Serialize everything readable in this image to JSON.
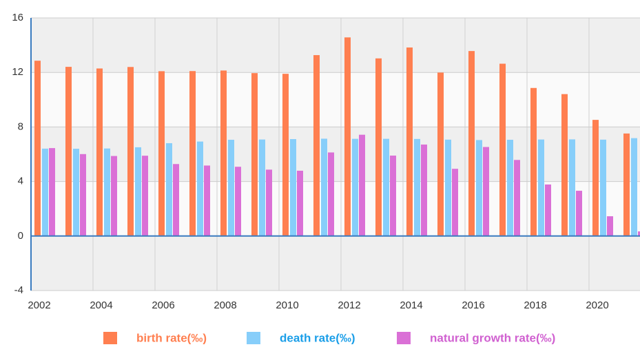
{
  "chart_data": {
    "type": "bar",
    "categories": [
      "2002",
      null,
      "2004",
      null,
      "2006",
      null,
      "2008",
      null,
      "2010",
      null,
      "2012",
      null,
      "2014",
      null,
      "2016",
      null,
      "2018",
      null,
      "2020",
      null
    ],
    "series": [
      {
        "name": "birth rate(‰)",
        "color": "#ff7f50",
        "values": [
          12.86,
          12.41,
          12.29,
          12.4,
          12.09,
          12.1,
          12.14,
          11.95,
          11.9,
          13.27,
          14.57,
          13.03,
          13.83,
          11.99,
          13.57,
          12.64,
          10.86,
          10.41,
          8.52,
          7.52
        ]
      },
      {
        "name": "death rate(‰)",
        "color": "#87cefa",
        "values": [
          6.41,
          6.4,
          6.42,
          6.51,
          6.81,
          6.93,
          7.06,
          7.08,
          7.11,
          7.14,
          7.13,
          7.13,
          7.12,
          7.07,
          7.04,
          7.06,
          7.08,
          7.09,
          7.07,
          7.18
        ]
      },
      {
        "name": "natural growth rate(‰)",
        "color": "#da70d6",
        "values": [
          6.45,
          6.01,
          5.87,
          5.89,
          5.28,
          5.17,
          5.08,
          4.87,
          4.79,
          6.13,
          7.43,
          5.9,
          6.71,
          4.93,
          6.53,
          5.58,
          3.78,
          3.32,
          1.45,
          0.34
        ]
      }
    ],
    "ylim": [
      -4,
      16
    ],
    "yticks": [
      -4,
      0,
      4,
      8,
      12,
      16
    ],
    "grid": true,
    "legend": "bottom"
  }
}
